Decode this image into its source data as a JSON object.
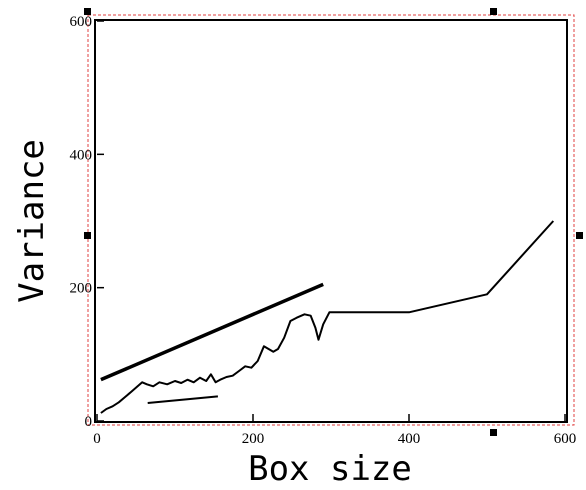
{
  "chart_data": {
    "type": "line",
    "xlabel": "Box size",
    "ylabel": "Variance",
    "xlim": [
      0,
      600
    ],
    "ylim": [
      0,
      600
    ],
    "x_ticks": [
      0,
      200,
      400,
      600
    ],
    "y_ticks": [
      0,
      200,
      400,
      600
    ],
    "grid": false,
    "series": [
      {
        "x": [
          5,
          12,
          20,
          28,
          36,
          44,
          52,
          58,
          64,
          72,
          80,
          90,
          100,
          108,
          116,
          124,
          132,
          140,
          146,
          152,
          158,
          166,
          174,
          182,
          190,
          198,
          206,
          214,
          220,
          226,
          232,
          240,
          248,
          256,
          266,
          274,
          280,
          284,
          290,
          298,
          310,
          400,
          500,
          585
        ],
        "y": [
          12,
          18,
          22,
          28,
          36,
          44,
          52,
          58,
          55,
          52,
          58,
          55,
          60,
          57,
          62,
          58,
          65,
          60,
          70,
          58,
          62,
          66,
          68,
          75,
          82,
          80,
          90,
          112,
          108,
          104,
          108,
          125,
          150,
          155,
          160,
          158,
          140,
          122,
          145,
          163,
          163,
          163,
          190,
          300
        ]
      }
    ],
    "reference_lines": [
      {
        "x": [
          5,
          290
        ],
        "y": [
          62,
          205
        ],
        "style": "thick"
      },
      {
        "x": [
          65,
          155
        ],
        "y": [
          27,
          37
        ],
        "style": "thin"
      }
    ],
    "colors": {
      "line": "#000000",
      "selection_border": "#ff0000"
    }
  }
}
